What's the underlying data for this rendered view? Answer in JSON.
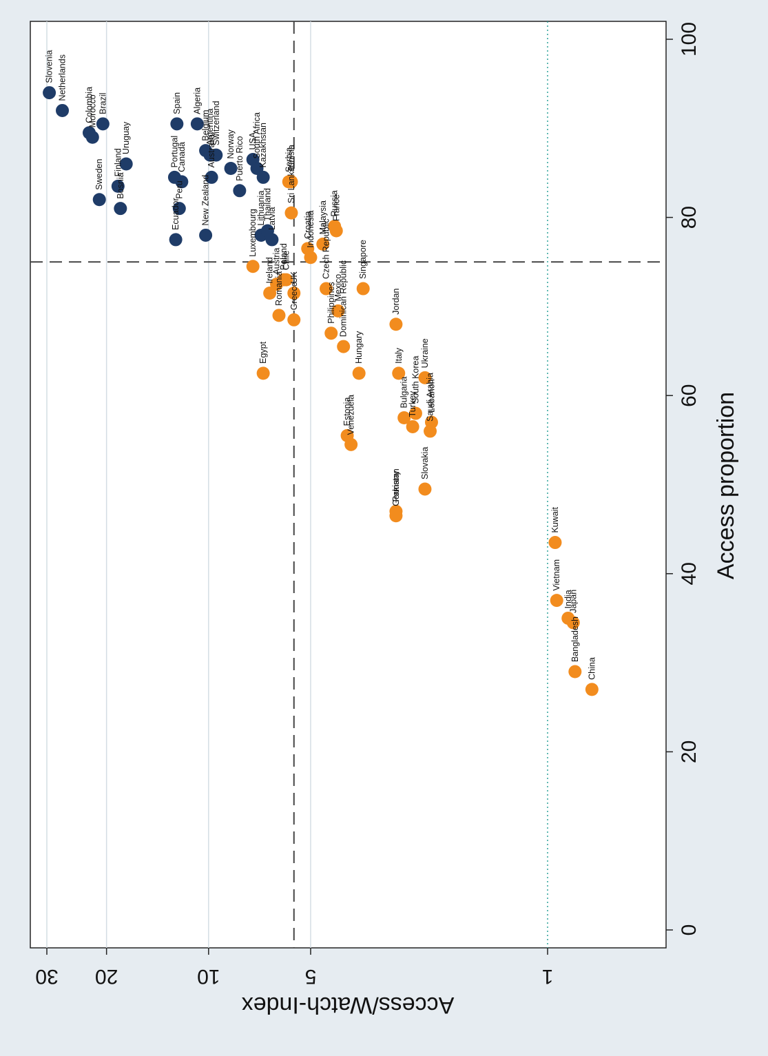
{
  "chart_data": {
    "type": "scatter",
    "orientation": "rotated-90-clockwise",
    "xlabel": "Access proportion",
    "ylabel": "Access/Watch-Index",
    "xlim": [
      0,
      100
    ],
    "ylim": [
      0.73,
      34
    ],
    "yscale": "log",
    "x_ticks": [
      "0",
      "20",
      "40",
      "60",
      "80",
      "100"
    ],
    "y_ticks": [
      "1",
      "5",
      "10",
      "20",
      "30"
    ],
    "grid": true,
    "legend": "none",
    "reference_lines": {
      "x": 75,
      "y": 5.6,
      "y_dotted": 1
    },
    "colors": {
      "high_group": "#1f3c68",
      "low_group": "#f28c1e",
      "grid": "#d4dde4",
      "reference": "#444444",
      "dotted": "#2aa198"
    },
    "series": [
      {
        "group": "high_group",
        "points": [
          {
            "label": "Slovenia",
            "x": 94,
            "y": 29.5
          },
          {
            "label": "Netherlands",
            "x": 92,
            "y": 27
          },
          {
            "label": "Brazil",
            "x": 90.5,
            "y": 20.5
          },
          {
            "label": "Colombia",
            "x": 89.5,
            "y": 22.5
          },
          {
            "label": "Morocco",
            "x": 89,
            "y": 22
          },
          {
            "label": "Uruguay",
            "x": 86,
            "y": 17.5
          },
          {
            "label": "Finland",
            "x": 83.5,
            "y": 18.5
          },
          {
            "label": "Sweden",
            "x": 82,
            "y": 21
          },
          {
            "label": "Bosnia",
            "x": 81,
            "y": 18.2
          },
          {
            "label": "Spain",
            "x": 90.5,
            "y": 12.4
          },
          {
            "label": "Algeria",
            "x": 90.5,
            "y": 10.8
          },
          {
            "label": "Belgium",
            "x": 87.5,
            "y": 10.2
          },
          {
            "label": "Argentina",
            "x": 87,
            "y": 9.9
          },
          {
            "label": "Switzerland",
            "x": 87,
            "y": 9.5
          },
          {
            "label": "Canada",
            "x": 84,
            "y": 12.0
          },
          {
            "label": "Portugal",
            "x": 84.5,
            "y": 12.6
          },
          {
            "label": "Peru",
            "x": 81,
            "y": 12.2
          },
          {
            "label": "Australia",
            "x": 84.5,
            "y": 9.8
          },
          {
            "label": "Norway",
            "x": 85.5,
            "y": 8.6
          },
          {
            "label": "USA",
            "x": 86.5,
            "y": 7.4
          },
          {
            "label": "Puerto Rico",
            "x": 83,
            "y": 8.1
          },
          {
            "label": "Ecuador",
            "x": 77.5,
            "y": 12.5
          },
          {
            "label": "New Zealand",
            "x": 78,
            "y": 10.2
          },
          {
            "label": "South Africa",
            "x": 85.5,
            "y": 7.2
          },
          {
            "label": "Kazakhstan",
            "x": 84.5,
            "y": 6.9
          },
          {
            "label": "Lithuania",
            "x": 78,
            "y": 7.0
          },
          {
            "label": "Thailand",
            "x": 78.5,
            "y": 6.7
          },
          {
            "label": "Latvia",
            "x": 77.5,
            "y": 6.5
          }
        ]
      },
      {
        "group": "low_group",
        "points": [
          {
            "label": "Serbia",
            "x": 84,
            "y": 5.8
          },
          {
            "label": "Tunisia",
            "x": 84,
            "y": 5.7
          },
          {
            "label": "Sri Lanka",
            "x": 80.5,
            "y": 5.7
          },
          {
            "label": "Croatia",
            "x": 76.5,
            "y": 5.1
          },
          {
            "label": "Malaysia",
            "x": 77,
            "y": 4.6
          },
          {
            "label": "Russia",
            "x": 79,
            "y": 4.25
          },
          {
            "label": "France",
            "x": 78.5,
            "y": 4.2
          },
          {
            "label": "Luxembourg",
            "x": 74.5,
            "y": 7.4
          },
          {
            "label": "Poland",
            "x": 73,
            "y": 6.0
          },
          {
            "label": "Chile",
            "x": 73,
            "y": 5.9
          },
          {
            "label": "Austria",
            "x": 72.5,
            "y": 6.3
          },
          {
            "label": "Ireland",
            "x": 71.5,
            "y": 6.6
          },
          {
            "label": "UK",
            "x": 71.5,
            "y": 5.6
          },
          {
            "label": "Indonesia",
            "x": 75.5,
            "y": 5.0
          },
          {
            "label": "Czech Republic",
            "x": 72,
            "y": 4.5
          },
          {
            "label": "Mexico",
            "x": 69.5,
            "y": 4.15
          },
          {
            "label": "Romania",
            "x": 69,
            "y": 6.2
          },
          {
            "label": "Greece",
            "x": 68.5,
            "y": 5.6
          },
          {
            "label": "Philippines",
            "x": 67,
            "y": 4.35
          },
          {
            "label": "Singapore",
            "x": 72,
            "y": 3.5
          },
          {
            "label": "Jordan",
            "x": 68,
            "y": 2.8
          },
          {
            "label": "Dominican Republic",
            "x": 65.5,
            "y": 4.0
          },
          {
            "label": "Italy",
            "x": 62.5,
            "y": 2.75
          },
          {
            "label": "Hungary",
            "x": 62.5,
            "y": 3.6
          },
          {
            "label": "Egypt",
            "x": 62.5,
            "y": 6.9
          },
          {
            "label": "Estonia",
            "x": 55.5,
            "y": 3.9
          },
          {
            "label": "Ukraine",
            "x": 62,
            "y": 2.3
          },
          {
            "label": "South Korea",
            "x": 58,
            "y": 2.45
          },
          {
            "label": "Bulgaria",
            "x": 57.5,
            "y": 2.65
          },
          {
            "label": "Turkey",
            "x": 56.5,
            "y": 2.5
          },
          {
            "label": "Lebanon",
            "x": 57,
            "y": 2.2
          },
          {
            "label": "Saudi Arabia",
            "x": 56,
            "y": 2.22
          },
          {
            "label": "Pakistan",
            "x": 47,
            "y": 2.8
          },
          {
            "label": "Slovakia",
            "x": 49.5,
            "y": 2.3
          },
          {
            "label": "Venezuela",
            "x": 54.5,
            "y": 3.8
          },
          {
            "label": "Germany",
            "x": 46.5,
            "y": 2.8
          },
          {
            "label": "Kuwait",
            "x": 43.5,
            "y": 0.95
          },
          {
            "label": "Vietnam",
            "x": 37,
            "y": 0.94
          },
          {
            "label": "India",
            "x": 35,
            "y": 0.87
          },
          {
            "label": "Japan",
            "x": 34.5,
            "y": 0.84
          },
          {
            "label": "Bangladesh",
            "x": 29,
            "y": 0.83
          },
          {
            "label": "China",
            "x": 27,
            "y": 0.74
          }
        ]
      }
    ]
  }
}
